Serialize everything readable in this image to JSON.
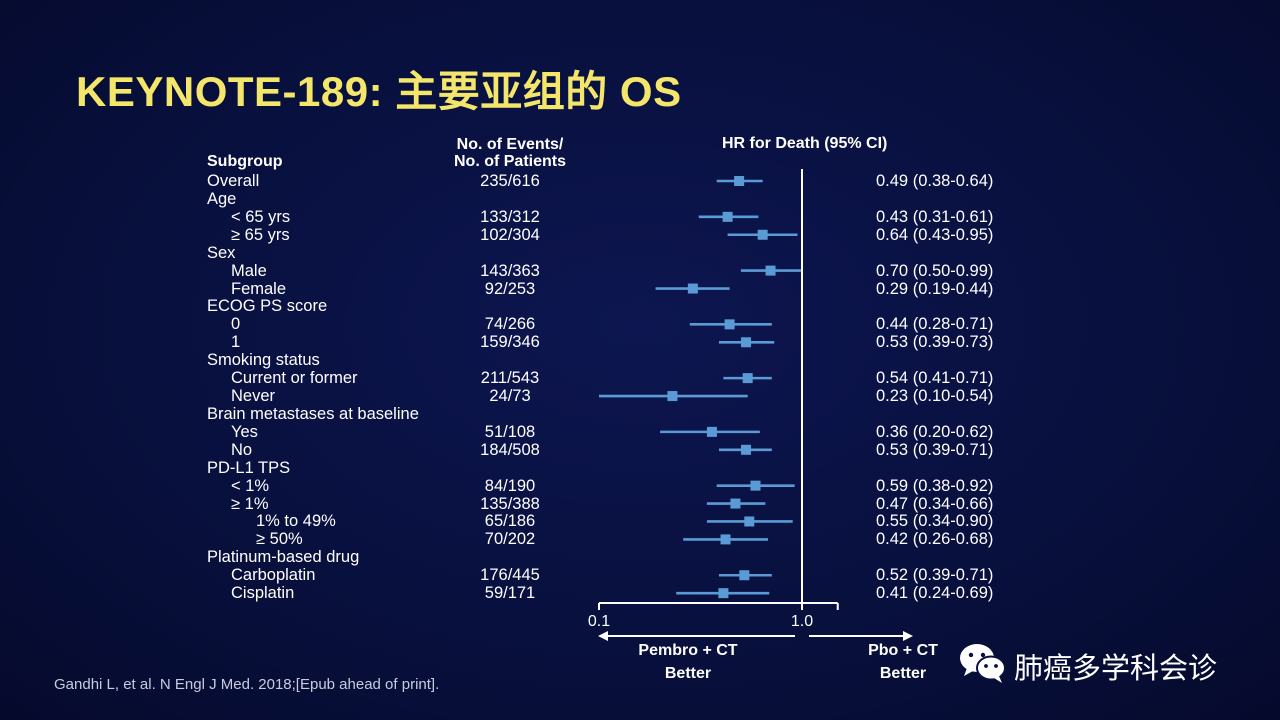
{
  "title": "KEYNOTE-189: 主要亚组的 OS",
  "headers": {
    "subgroup": "Subgroup",
    "events_line1": "No. of Events/",
    "events_line2": "No. of Patients",
    "hr": "HR for Death (95% CI)"
  },
  "colors": {
    "title": "#f3e66a",
    "marker": "#5b9bd5",
    "axis": "#ffffff"
  },
  "chart_data": {
    "type": "forest",
    "xscale": "log",
    "xlim": [
      0.1,
      1.5
    ],
    "xticks": [
      "0.1",
      "1.0"
    ],
    "reference_line": 1.0,
    "rows": [
      {
        "label": "Overall",
        "indent": 0,
        "events": "235/616",
        "hr": 0.49,
        "lo": 0.38,
        "hi": 0.64,
        "hr_text": "0.49 (0.38-0.64)"
      },
      {
        "label": "Age",
        "indent": 0,
        "header": true
      },
      {
        "label": "< 65 yrs",
        "indent": 1,
        "events": "133/312",
        "hr": 0.43,
        "lo": 0.31,
        "hi": 0.61,
        "hr_text": "0.43 (0.31-0.61)"
      },
      {
        "label": "≥ 65 yrs",
        "indent": 1,
        "events": "102/304",
        "hr": 0.64,
        "lo": 0.43,
        "hi": 0.95,
        "hr_text": "0.64 (0.43-0.95)"
      },
      {
        "label": "Sex",
        "indent": 0,
        "header": true
      },
      {
        "label": "Male",
        "indent": 1,
        "events": "143/363",
        "hr": 0.7,
        "lo": 0.5,
        "hi": 0.99,
        "hr_text": "0.70 (0.50-0.99)"
      },
      {
        "label": "Female",
        "indent": 1,
        "events": "92/253",
        "hr": 0.29,
        "lo": 0.19,
        "hi": 0.44,
        "hr_text": "0.29 (0.19-0.44)"
      },
      {
        "label": "ECOG PS score",
        "indent": 0,
        "header": true
      },
      {
        "label": "0",
        "indent": 1,
        "events": "74/266",
        "hr": 0.44,
        "lo": 0.28,
        "hi": 0.71,
        "hr_text": "0.44 (0.28-0.71)"
      },
      {
        "label": "1",
        "indent": 1,
        "events": "159/346",
        "hr": 0.53,
        "lo": 0.39,
        "hi": 0.73,
        "hr_text": "0.53 (0.39-0.73)"
      },
      {
        "label": "Smoking status",
        "indent": 0,
        "header": true
      },
      {
        "label": "Current or former",
        "indent": 1,
        "events": "211/543",
        "hr": 0.54,
        "lo": 0.41,
        "hi": 0.71,
        "hr_text": "0.54 (0.41-0.71)"
      },
      {
        "label": "Never",
        "indent": 1,
        "events": "24/73",
        "hr": 0.23,
        "lo": 0.1,
        "hi": 0.54,
        "hr_text": "0.23 (0.10-0.54)"
      },
      {
        "label": "Brain metastases at baseline",
        "indent": 0,
        "header": true
      },
      {
        "label": "Yes",
        "indent": 1,
        "events": "51/108",
        "hr": 0.36,
        "lo": 0.2,
        "hi": 0.62,
        "hr_text": "0.36 (0.20-0.62)"
      },
      {
        "label": "No",
        "indent": 1,
        "events": "184/508",
        "hr": 0.53,
        "lo": 0.39,
        "hi": 0.71,
        "hr_text": "0.53 (0.39-0.71)"
      },
      {
        "label": "PD-L1 TPS",
        "indent": 0,
        "header": true
      },
      {
        "label": "< 1%",
        "indent": 1,
        "events": "84/190",
        "hr": 0.59,
        "lo": 0.38,
        "hi": 0.92,
        "hr_text": "0.59 (0.38-0.92)"
      },
      {
        "label": "≥ 1%",
        "indent": 1,
        "events": "135/388",
        "hr": 0.47,
        "lo": 0.34,
        "hi": 0.66,
        "hr_text": "0.47 (0.34-0.66)"
      },
      {
        "label": "1% to 49%",
        "indent": 2,
        "events": "65/186",
        "hr": 0.55,
        "lo": 0.34,
        "hi": 0.9,
        "hr_text": "0.55 (0.34-0.90)"
      },
      {
        "label": "≥ 50%",
        "indent": 2,
        "events": "70/202",
        "hr": 0.42,
        "lo": 0.26,
        "hi": 0.68,
        "hr_text": "0.42 (0.26-0.68)"
      },
      {
        "label": "Platinum-based drug",
        "indent": 0,
        "header": true
      },
      {
        "label": "Carboplatin",
        "indent": 1,
        "events": "176/445",
        "hr": 0.52,
        "lo": 0.39,
        "hi": 0.71,
        "hr_text": "0.52 (0.39-0.71)"
      },
      {
        "label": "Cisplatin",
        "indent": 1,
        "events": "59/171",
        "hr": 0.41,
        "lo": 0.24,
        "hi": 0.69,
        "hr_text": "0.41 (0.24-0.69)"
      }
    ],
    "favors_left": [
      "Pembro + CT",
      "Better"
    ],
    "favors_right": [
      "Pbo + CT",
      "Better"
    ]
  },
  "citation": "Gandhi L, et al. N Engl J Med. 2018;[Epub ahead of print].",
  "watermark": {
    "icon": "wechat-icon",
    "text": "肺癌多学科会诊"
  }
}
